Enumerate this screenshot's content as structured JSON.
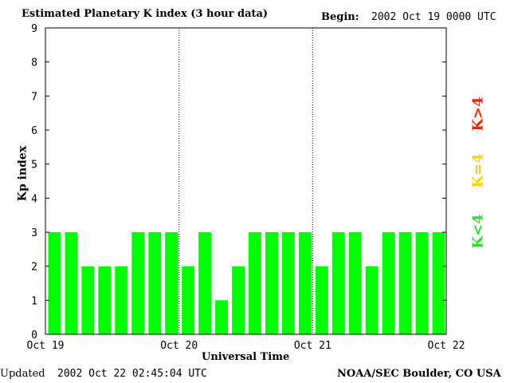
{
  "title": "Estimated Planetary K index (3 hour data)",
  "begin": {
    "label": "Begin:",
    "value": "2002 Oct 19 0000 UTC"
  },
  "footer": {
    "updated_label": "Updated",
    "updated_value": "2002 Oct 22 02:45:04 UTC",
    "source": "NOAA/SEC Boulder, CO USA"
  },
  "legend": [
    {
      "label": "K>4",
      "color": "#ff2000"
    },
    {
      "label": "K=4",
      "color": "#ffd000"
    },
    {
      "label": "K<4",
      "color": "#33dd33"
    }
  ],
  "chart_data": {
    "type": "bar",
    "title": "Estimated Planetary K index (3 hour data)",
    "xlabel": "Universal Time",
    "ylabel": "Kp index",
    "ylim": [
      0,
      9
    ],
    "yticks": [
      0,
      1,
      2,
      3,
      4,
      5,
      6,
      7,
      8,
      9
    ],
    "xtick_labels": [
      "Oct 19",
      "Oct 20",
      "Oct 21",
      "Oct 22"
    ],
    "grid": "dotted vertical day separators",
    "bar_color": "#00ff00",
    "values": [
      3,
      3,
      2,
      2,
      2,
      3,
      3,
      3,
      2,
      3,
      1,
      2,
      3,
      3,
      3,
      3,
      2,
      3,
      3,
      2,
      3,
      3,
      3,
      3
    ]
  }
}
